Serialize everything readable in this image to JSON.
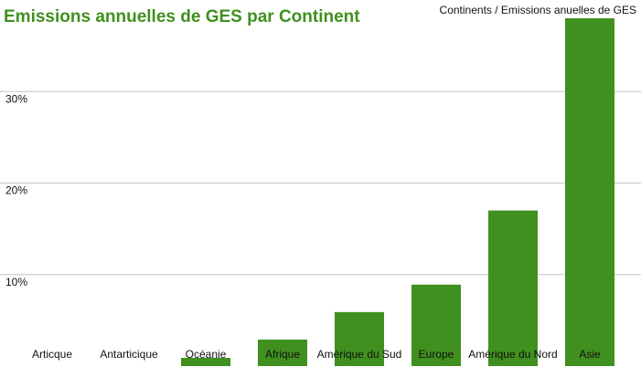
{
  "chart_data": {
    "type": "bar",
    "title": "Emissions annuelles de GES par Continent",
    "categories": [
      "Articque",
      "Antarticique",
      "Océanie",
      "Afrique",
      "Amérique du Sud",
      "Europe",
      "Amérique du Nord",
      "Asie"
    ],
    "series": [
      {
        "name": "Continents / Emissions anuelles de GES",
        "color": "#40901f",
        "values": [
          0,
          0,
          0.9,
          2.9,
          5.9,
          8.9,
          17,
          38
        ]
      }
    ],
    "ylim": [
      0,
      40
    ],
    "yticks": [
      {
        "value": 10,
        "label": "10%"
      },
      {
        "value": 20,
        "label": "20%"
      },
      {
        "value": 30,
        "label": "30%"
      }
    ],
    "grid": true
  }
}
